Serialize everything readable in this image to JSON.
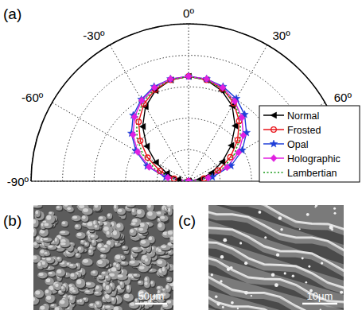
{
  "chart_data": {
    "type": "polar",
    "title": "(a)",
    "x": [
      -90,
      -80,
      -70,
      -60,
      -50,
      -40,
      -30,
      -20,
      -10,
      0,
      10,
      20,
      30,
      40,
      50,
      60,
      70,
      80,
      90
    ],
    "xlim": [
      -90,
      90
    ],
    "xticks": [
      {
        "value": -90,
        "label": "-90º"
      },
      {
        "value": -60,
        "label": "-60º"
      },
      {
        "value": -30,
        "label": "-30º"
      },
      {
        "value": 0,
        "label": "0º"
      },
      {
        "value": 30,
        "label": "30º"
      },
      {
        "value": 60,
        "label": "60º"
      }
    ],
    "ylim": [
      0,
      1.5
    ],
    "yticks": [
      0.3,
      0.6,
      0.9,
      1.2,
      1.5
    ],
    "tick_labels": "x",
    "grid": true,
    "legend": "right",
    "series": [
      {
        "name": "Normal",
        "color": "#000000",
        "marker": "triangle-left",
        "line_style": "solid",
        "values": [
          0,
          0.1,
          0.22,
          0.36,
          0.52,
          0.68,
          0.82,
          0.92,
          0.98,
          1.0,
          0.98,
          0.92,
          0.83,
          0.69,
          0.53,
          0.37,
          0.23,
          0.11,
          0
        ]
      },
      {
        "name": "Frosted",
        "color": "#e8141b",
        "marker": "circle",
        "line_style": "solid",
        "values": [
          0,
          0.14,
          0.29,
          0.45,
          0.6,
          0.74,
          0.85,
          0.93,
          0.98,
          1.0,
          0.98,
          0.94,
          0.86,
          0.75,
          0.61,
          0.46,
          0.3,
          0.15,
          0
        ]
      },
      {
        "name": "Opal",
        "color": "#1f3fd8",
        "marker": "star",
        "line_style": "solid",
        "values": [
          0,
          0.22,
          0.42,
          0.58,
          0.71,
          0.82,
          0.9,
          0.96,
          0.99,
          1.0,
          0.99,
          0.96,
          0.91,
          0.83,
          0.72,
          0.59,
          0.43,
          0.23,
          0
        ]
      },
      {
        "name": "Holographic",
        "color": "#e020e0",
        "marker": "diamond",
        "line_style": "solid",
        "values": [
          0,
          0.2,
          0.4,
          0.56,
          0.69,
          0.8,
          0.89,
          0.95,
          0.99,
          1.0,
          0.99,
          0.95,
          0.88,
          0.79,
          0.68,
          0.55,
          0.39,
          0.19,
          0
        ]
      },
      {
        "name": "Lambertian",
        "color": "#1a9a1a",
        "marker": "none",
        "line_style": "dotted",
        "values": [
          0,
          0.17,
          0.34,
          0.5,
          0.64,
          0.77,
          0.87,
          0.94,
          0.98,
          1.0,
          0.98,
          0.94,
          0.87,
          0.77,
          0.64,
          0.5,
          0.34,
          0.17,
          0
        ]
      }
    ]
  },
  "images": [
    {
      "label": "(b)",
      "scale_bar": "50μm"
    },
    {
      "label": "(c)",
      "scale_bar": "10μm"
    }
  ]
}
